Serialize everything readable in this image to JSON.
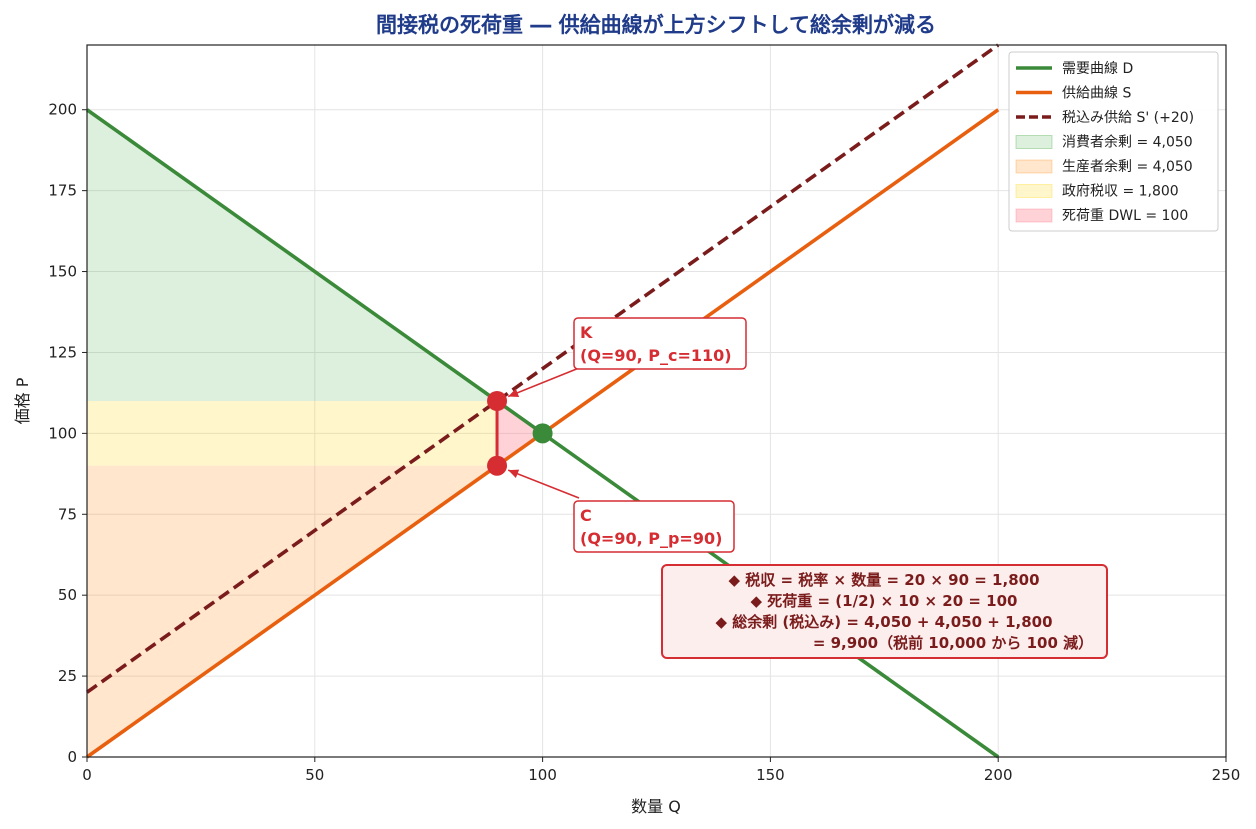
{
  "chart_data": {
    "type": "line",
    "title": "間接税の死荷重 ― 供給曲線が上方シフトして総余剰が減る",
    "xlabel": "数量 Q",
    "ylabel": "価格 P",
    "xlim": [
      0,
      250
    ],
    "ylim": [
      0,
      220
    ],
    "xticks": [
      0,
      50,
      100,
      150,
      200,
      250
    ],
    "yticks": [
      0,
      25,
      50,
      75,
      100,
      125,
      150,
      175,
      200
    ],
    "grid": true,
    "legend_position": "top-right",
    "series": [
      {
        "key": "demand",
        "name": "需要曲線 D",
        "x": [
          0,
          200
        ],
        "y": [
          200,
          0
        ],
        "color": "#3a8a3a",
        "style": "solid"
      },
      {
        "key": "supply",
        "name": "供給曲線 S",
        "x": [
          0,
          200
        ],
        "y": [
          0,
          200
        ],
        "color": "#e8600f",
        "style": "solid"
      },
      {
        "key": "taxed_supply",
        "name": "税込み供給 S' (+20)",
        "x": [
          0,
          200
        ],
        "y": [
          20,
          220
        ],
        "color": "#7b1c1c",
        "style": "dashed"
      }
    ],
    "areas": [
      {
        "key": "consumer_surplus",
        "name": "消費者余剰 = 4,050",
        "polygon": [
          [
            0,
            110
          ],
          [
            0,
            200
          ],
          [
            90,
            110
          ]
        ],
        "color": "#2ca02c",
        "opacity": 0.16
      },
      {
        "key": "government_revenue",
        "name": "政府税収 = 1,800",
        "polygon": [
          [
            0,
            90
          ],
          [
            90,
            90
          ],
          [
            90,
            110
          ],
          [
            0,
            110
          ]
        ],
        "color": "#ffd400",
        "opacity": 0.2
      },
      {
        "key": "producer_surplus",
        "name": "生産者余剰 = 4,050",
        "polygon": [
          [
            0,
            0
          ],
          [
            90,
            90
          ],
          [
            0,
            90
          ]
        ],
        "color": "#ff8c1a",
        "opacity": 0.22
      },
      {
        "key": "deadweight_loss",
        "name": "死荷重 DWL = 100",
        "polygon": [
          [
            90,
            90
          ],
          [
            90,
            110
          ],
          [
            100,
            100
          ]
        ],
        "color": "#ff6b7a",
        "opacity": 0.3
      }
    ],
    "points": [
      {
        "key": "K",
        "x": 90,
        "y": 110,
        "color": "#d62d32"
      },
      {
        "key": "C",
        "x": 90,
        "y": 90,
        "color": "#d62d32"
      },
      {
        "key": "E",
        "x": 100,
        "y": 100,
        "color": "#3a8a3a"
      }
    ],
    "annotations": [
      {
        "key": "K",
        "lines": [
          "K",
          "(Q=90, P_c=110)"
        ],
        "target": [
          90,
          110
        ]
      },
      {
        "key": "C",
        "lines": [
          "C",
          "(Q=90, P_p=90)"
        ],
        "target": [
          90,
          90
        ]
      }
    ],
    "info_box": [
      "◆ 税収 = 税率 × 数量 = 20 × 90 = 1,800",
      "◆ 死荷重 = (1/2) × 10 × 20 = 100",
      "◆ 総余剰 (税込み) = 4,050 + 4,050 + 1,800",
      "= 9,900（税前 10,000 から 100 減）"
    ],
    "legend": [
      {
        "label": "需要曲線 D",
        "kind": "line",
        "color": "#3a8a3a"
      },
      {
        "label": "供給曲線 S",
        "kind": "line",
        "color": "#e8600f"
      },
      {
        "label": "税込み供給 S' (+20)",
        "kind": "dashed",
        "color": "#7b1c1c"
      },
      {
        "label": "消費者余剰 = 4,050",
        "kind": "patch",
        "color": "#2ca02c"
      },
      {
        "label": "生産者余剰 = 4,050",
        "kind": "patch",
        "color": "#ff8c1a"
      },
      {
        "label": "政府税収 = 1,800",
        "kind": "patch",
        "color": "#ffd400"
      },
      {
        "label": "死荷重 DWL = 100",
        "kind": "patch",
        "color": "#ff6b7a"
      }
    ]
  }
}
